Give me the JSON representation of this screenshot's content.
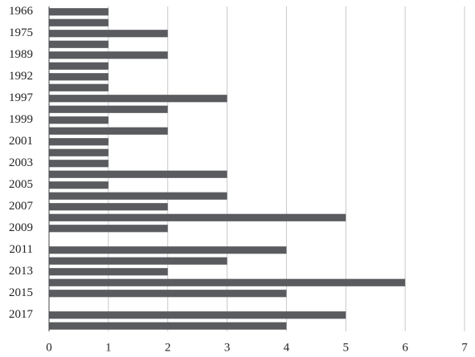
{
  "chart_data": {
    "type": "barh",
    "categories": [
      "1966",
      null,
      "1975",
      null,
      "1989",
      null,
      "1992",
      null,
      "1997",
      null,
      "1999",
      null,
      "2001",
      null,
      "2003",
      null,
      "2005",
      null,
      "2007",
      null,
      "2009",
      null,
      "2011",
      null,
      "2013",
      null,
      "2015",
      null,
      "2017",
      null
    ],
    "values": [
      1,
      1,
      2,
      1,
      2,
      1,
      1,
      1,
      3,
      2,
      1,
      2,
      1,
      1,
      1,
      3,
      1,
      3,
      2,
      5,
      2,
      0,
      4,
      3,
      2,
      6,
      4,
      0,
      5,
      4
    ],
    "color": "#595b5f",
    "xlim": [
      0,
      7
    ],
    "xticks": [
      0,
      1,
      2,
      3,
      4,
      5,
      6,
      7
    ],
    "grid": true
  }
}
